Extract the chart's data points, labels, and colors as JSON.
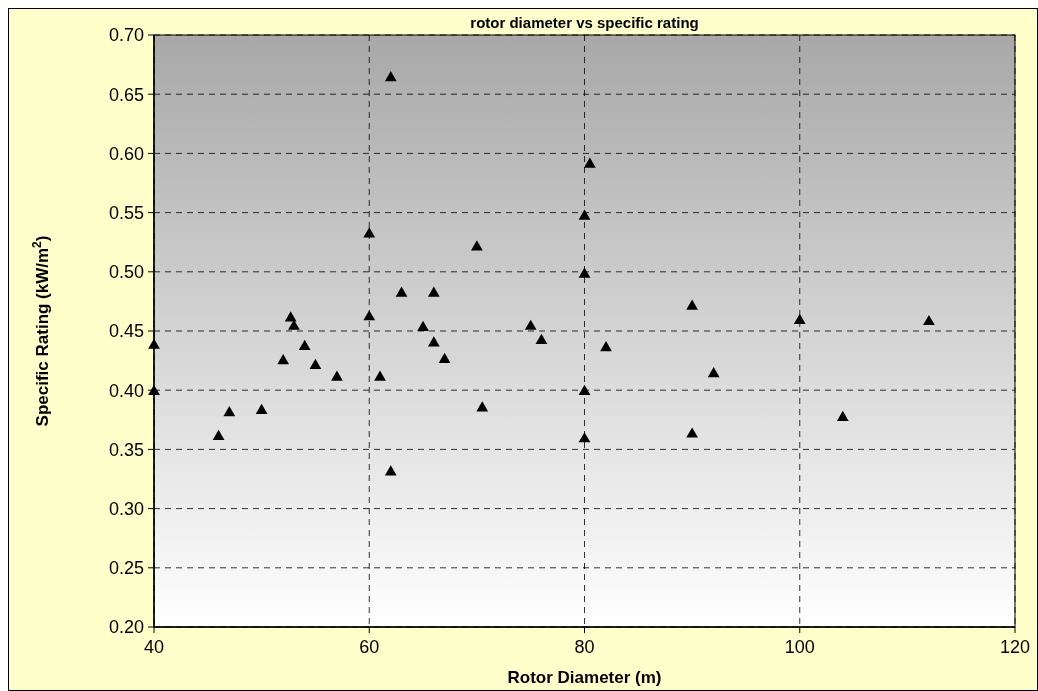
{
  "chart_data": {
    "type": "scatter",
    "title": "rotor diameter vs specific rating",
    "xlabel": "Rotor Diameter (m)",
    "ylabel": "Specific Rating (kW/m$^{2}$)",
    "x": [
      40,
      40,
      46,
      47,
      50,
      52,
      52.7,
      53,
      54,
      55,
      57,
      60,
      60,
      61,
      62,
      62,
      63,
      65,
      66,
      66,
      67,
      70,
      70.5,
      75,
      76,
      80,
      80.5,
      80,
      80,
      80,
      82,
      90,
      90,
      92,
      100,
      104,
      112
    ],
    "values": [
      0.437,
      0.398,
      0.36,
      0.38,
      0.382,
      0.424,
      0.46,
      0.453,
      0.436,
      0.42,
      0.41,
      0.531,
      0.461,
      0.41,
      0.663,
      0.33,
      0.481,
      0.452,
      0.481,
      0.439,
      0.425,
      0.52,
      0.384,
      0.453,
      0.441,
      0.546,
      0.59,
      0.497,
      0.398,
      0.358,
      0.435,
      0.47,
      0.362,
      0.413,
      0.458,
      0.376,
      0.457
    ],
    "color": "#000000",
    "marker": "triangle",
    "grid": true,
    "xlim": [
      40,
      120
    ],
    "xticks": [
      40,
      60,
      80,
      100,
      120
    ],
    "ylim": [
      0.2,
      0.7
    ],
    "yticks": [
      {
        "value": 0.2,
        "label": "0.20"
      },
      {
        "value": 0.25,
        "label": "0.25"
      },
      {
        "value": 0.3,
        "label": "0.30"
      },
      {
        "value": 0.35,
        "label": "0.35"
      },
      {
        "value": 0.4,
        "label": "0.40"
      },
      {
        "value": 0.45,
        "label": "0.45"
      },
      {
        "value": 0.5,
        "label": "0.50"
      },
      {
        "value": 0.55,
        "label": "0.55"
      },
      {
        "value": 0.6,
        "label": "0.60"
      },
      {
        "value": 0.65,
        "label": "0.65"
      },
      {
        "value": 0.7,
        "label": "0.70"
      }
    ]
  }
}
